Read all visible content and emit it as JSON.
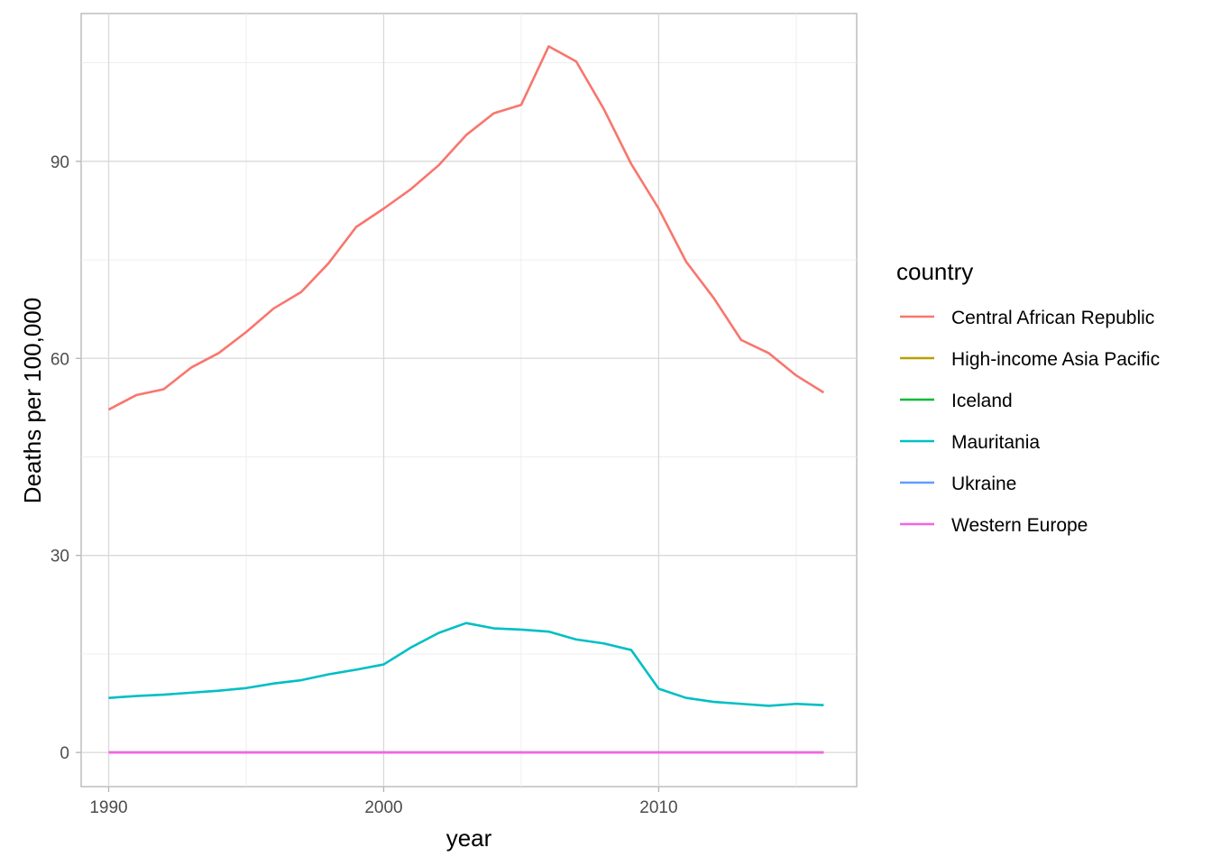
{
  "chart_data": {
    "type": "line",
    "xlabel": "year",
    "ylabel": "Deaths per 100,000",
    "xlim": [
      1989,
      2017.2
    ],
    "ylim": [
      -5.2,
      112.5
    ],
    "x_ticks": [
      1990,
      2000,
      2010
    ],
    "y_ticks": [
      0,
      30,
      60,
      90
    ],
    "grid": true,
    "legend_title": "country",
    "legend_position": "right",
    "x": [
      1990,
      1991,
      1992,
      1993,
      1994,
      1995,
      1996,
      1997,
      1998,
      1999,
      2000,
      2001,
      2002,
      2003,
      2004,
      2005,
      2006,
      2007,
      2008,
      2009,
      2010,
      2011,
      2012,
      2013,
      2014,
      2015,
      2016
    ],
    "series": [
      {
        "name": "Central African Republic",
        "color": "#F8766D",
        "values": [
          52.2,
          54.4,
          55.3,
          58.6,
          60.8,
          64.0,
          67.6,
          70.1,
          74.5,
          80.0,
          82.8,
          85.8,
          89.4,
          94.0,
          97.3,
          98.6,
          107.5,
          105.2,
          98.0,
          89.6,
          82.8,
          74.7,
          69.2,
          62.8,
          60.8,
          57.4,
          54.8
        ]
      },
      {
        "name": "High-income Asia Pacific",
        "color": "#B79F00",
        "values": [
          0,
          0,
          0,
          0,
          0,
          0,
          0,
          0,
          0,
          0,
          0,
          0,
          0,
          0,
          0,
          0,
          0,
          0,
          0,
          0,
          0,
          0,
          0,
          0,
          0,
          0,
          0
        ]
      },
      {
        "name": "Iceland",
        "color": "#00BA38",
        "values": [
          0,
          0,
          0,
          0,
          0,
          0,
          0,
          0,
          0,
          0,
          0,
          0,
          0,
          0,
          0,
          0,
          0,
          0,
          0,
          0,
          0,
          0,
          0,
          0,
          0,
          0,
          0
        ]
      },
      {
        "name": "Mauritania",
        "color": "#00BFC4",
        "values": [
          8.3,
          8.6,
          8.8,
          9.1,
          9.4,
          9.8,
          10.5,
          11.0,
          11.9,
          12.6,
          13.4,
          16.0,
          18.2,
          19.7,
          18.9,
          18.7,
          18.4,
          17.2,
          16.6,
          15.6,
          9.7,
          8.3,
          7.7,
          7.4,
          7.1,
          7.4,
          7.2
        ]
      },
      {
        "name": "Ukraine",
        "color": "#619CFF",
        "values": [
          0,
          0,
          0,
          0,
          0,
          0,
          0,
          0,
          0,
          0,
          0,
          0,
          0,
          0,
          0,
          0,
          0,
          0,
          0,
          0,
          0,
          0,
          0,
          0,
          0,
          0,
          0
        ]
      },
      {
        "name": "Western Europe",
        "color": "#F564E3",
        "values": [
          0,
          0,
          0,
          0,
          0,
          0,
          0,
          0,
          0,
          0,
          0,
          0,
          0,
          0,
          0,
          0,
          0,
          0,
          0,
          0,
          0,
          0,
          0,
          0,
          0,
          0,
          0
        ]
      }
    ]
  }
}
